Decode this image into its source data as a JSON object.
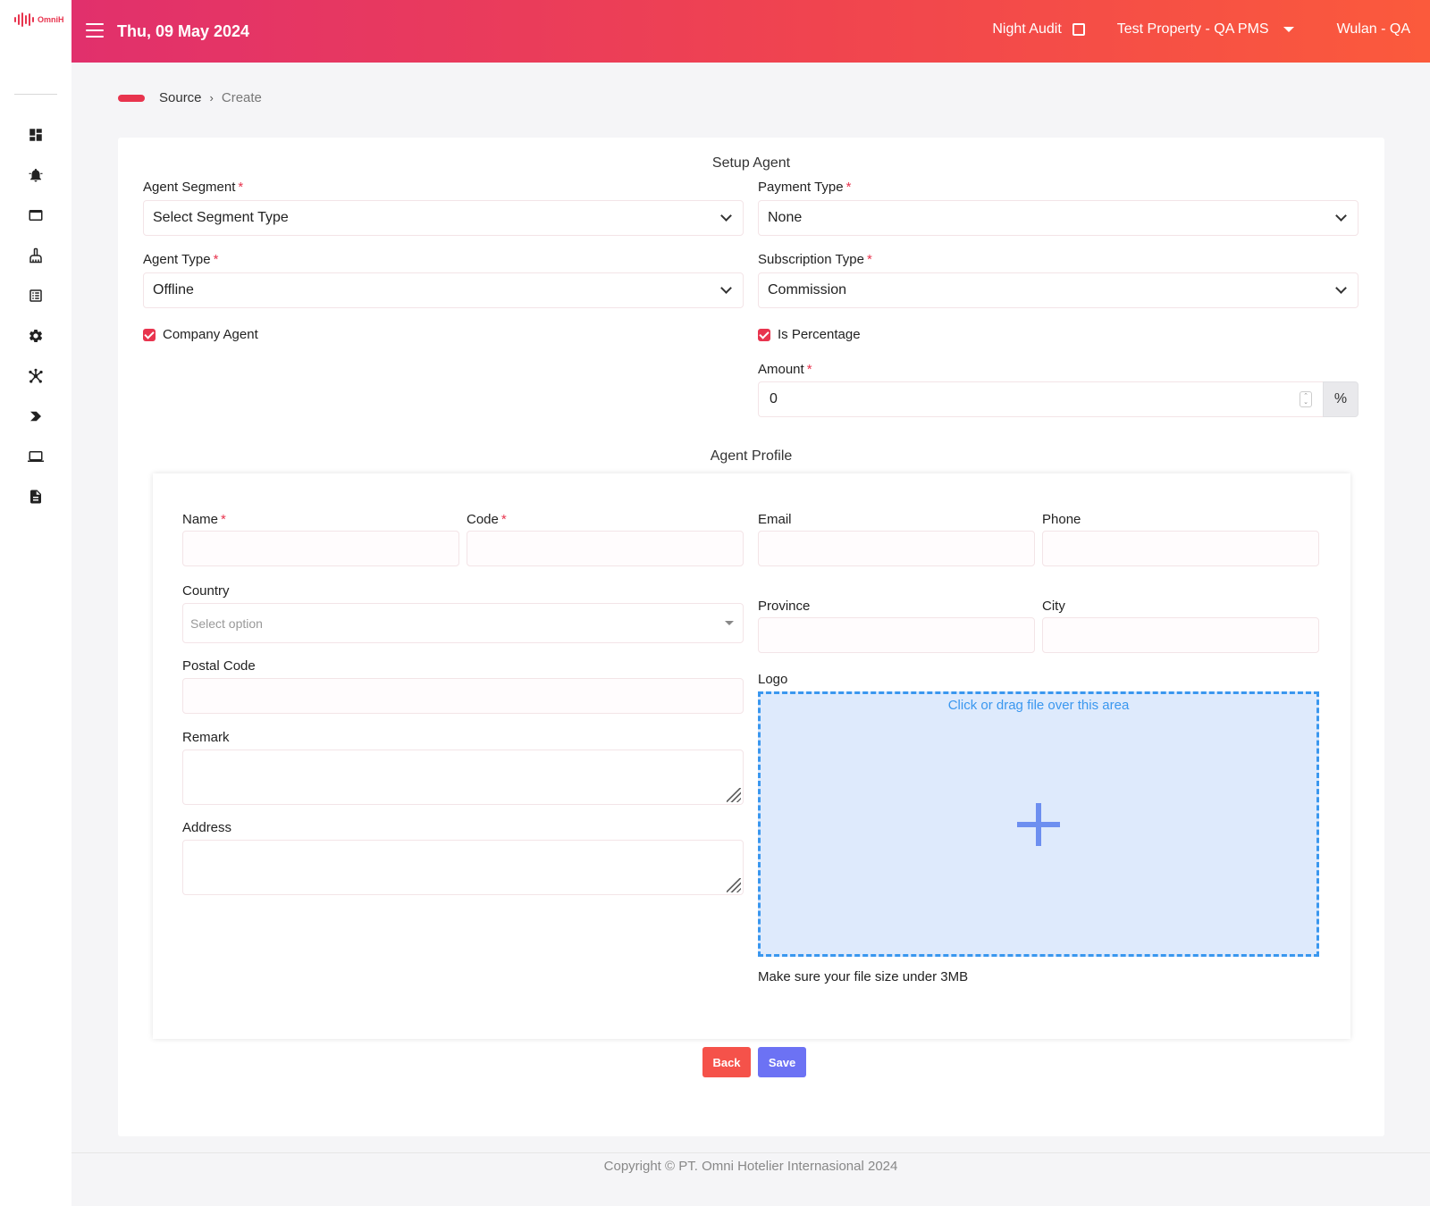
{
  "app": {
    "logo_text": "OmniH",
    "date": "Thu, 09 May 2024",
    "night_audit": "Night Audit",
    "property": "Test Property - QA PMS",
    "user": "Wulan - QA"
  },
  "sidebar": {
    "icons": [
      "dashboard-icon",
      "bell-icon",
      "window-icon",
      "cleaning-icon",
      "list-icon",
      "gear-icon",
      "network-icon",
      "chevron-right-icon",
      "laptop-icon",
      "report-icon"
    ]
  },
  "breadcrumb": {
    "parent": "Source",
    "separator": "›",
    "current": "Create"
  },
  "setup": {
    "title": "Setup Agent",
    "agent_segment": {
      "label": "Agent Segment",
      "value": "Select Segment Type"
    },
    "payment_type": {
      "label": "Payment Type",
      "value": "None"
    },
    "agent_type": {
      "label": "Agent Type",
      "value": "Offline"
    },
    "subscription_type": {
      "label": "Subscription Type",
      "value": "Commission"
    },
    "company_agent": {
      "label": "Company Agent",
      "checked": true
    },
    "is_percentage": {
      "label": "Is Percentage",
      "checked": true
    },
    "amount": {
      "label": "Amount",
      "value": "0",
      "addon": "%"
    },
    "required_mark": "*"
  },
  "profile": {
    "title": "Agent Profile",
    "name_label": "Name",
    "code_label": "Code",
    "email_label": "Email",
    "phone_label": "Phone",
    "country_label": "Country",
    "country_placeholder": "Select option",
    "province_label": "Province",
    "city_label": "City",
    "postal_label": "Postal Code",
    "remark_label": "Remark",
    "address_label": "Address",
    "logo_label": "Logo",
    "dropzone_text": "Click or drag file over this area",
    "file_hint": "Make sure your file size under 3MB"
  },
  "actions": {
    "back": "Back",
    "save": "Save"
  },
  "footer": {
    "copyright": "Copyright © PT. Omni Hotelier Internasional 2024"
  },
  "colors": {
    "accent": "#e8344e",
    "header_gradient_start": "#e1306c",
    "header_gradient_end": "#fb5a3c",
    "save_button": "#6c72f4",
    "back_button": "#f5524a",
    "dropzone_border": "#3a97ef"
  }
}
